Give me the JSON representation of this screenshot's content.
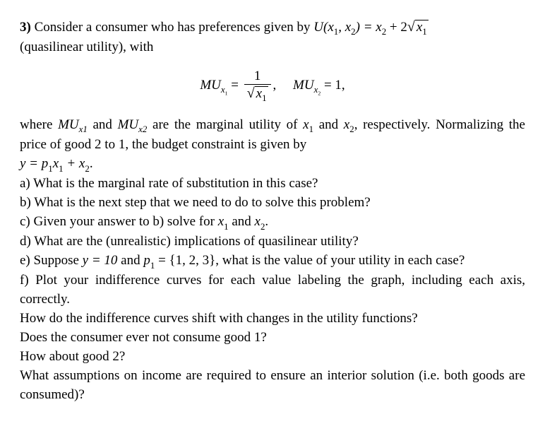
{
  "problem_number": "3)",
  "intro": {
    "part1": "Consider a consumer who has preferences given by ",
    "u_lhs": "U(x",
    "u_lhs_sub1": "1",
    "u_comma": ", x",
    "u_lhs_sub2": "2",
    "u_rhs_eq": ") = x",
    "u_rhs_sub2": "2",
    "u_plus": " + 2",
    "u_sqrt_var": "x",
    "u_sqrt_sub": "1",
    "part2": "(quasilinear utility), with"
  },
  "equation": {
    "mu1_lhs": "MU",
    "mu1_sub": "x",
    "mu1_subsub": "1",
    "eq1": " = ",
    "frac_num": "1",
    "frac_den_var": "x",
    "frac_den_sub": "1",
    "comma": ",",
    "mu2_lhs": "MU",
    "mu2_sub": "x",
    "mu2_subsub": "2",
    "eq2": " = 1,"
  },
  "where": {
    "t1": "where ",
    "mu1": "MU",
    "mu1_sub": "x1",
    "t2": " and ",
    "mu2": "MU",
    "mu2_sub": "x2",
    "t3": " are the marginal utility of ",
    "x1": "x",
    "x1_sub": "1",
    "t4": " and ",
    "x2": "x",
    "x2_sub": "2",
    "t5": ", respectively. Normalizing the price of good 2 to 1, the budget constraint is given by"
  },
  "budget": {
    "y": "y = p",
    "p1_sub": "1",
    "x1": "x",
    "x1_sub": "1",
    "plus": " + x",
    "x2_sub": "2",
    "dot": "."
  },
  "parts": {
    "a": "a) What is the marginal rate of substitution in this case?",
    "b": "b) What is the next step that we need to do to solve this problem?",
    "c_pre": "c) Given your answer to b) solve for ",
    "c_x1": "x",
    "c_x1s": "1",
    "c_and": " and ",
    "c_x2": "x",
    "c_x2s": "2",
    "c_end": ".",
    "d": "d) What are the (unrealistic) implications of quasilinear utility?",
    "e_pre": "e) Suppose ",
    "e_y": "y = 10",
    "e_and": " and ",
    "e_p": "p",
    "e_ps": "1",
    "e_set": " = {1, 2, 3}",
    "e_rest": ", what is the value of your utility in each case?",
    "f": "f) Plot your indifference curves for each value labeling the graph, including each axis, correctly.",
    "q1": "How do the indifference curves shift with changes in the utility functions?",
    "q2": "Does the consumer ever not consume good 1?",
    "q3": "How about good 2?",
    "q4": "What assumptions on income are required to ensure an interior solution (i.e. both goods are consumed)?"
  }
}
